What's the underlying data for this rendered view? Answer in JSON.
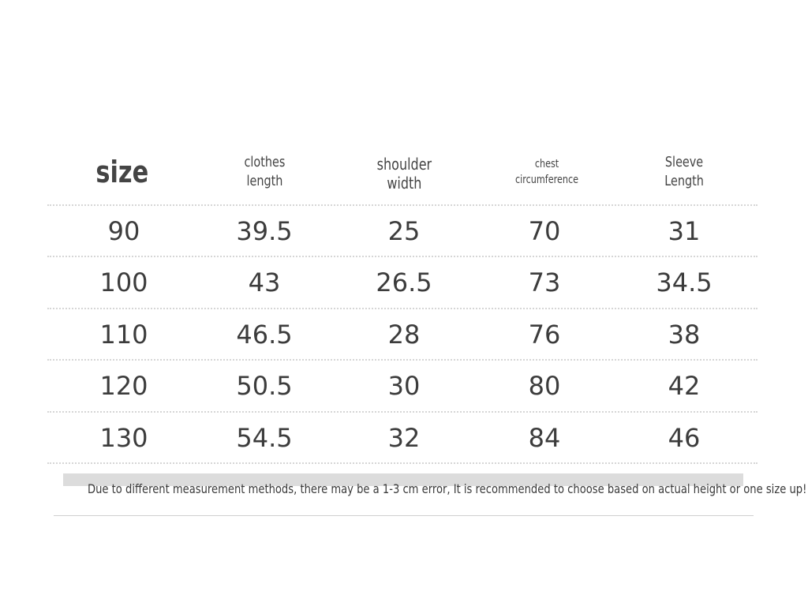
{
  "headers": [
    "size",
    "clothes length",
    "shoulder width",
    "chest circumference",
    "Sleeve Length"
  ],
  "header_lines": [
    [
      "size"
    ],
    [
      "clothes",
      "length"
    ],
    [
      "shoulder",
      "width"
    ],
    [
      "chest",
      "circumference"
    ],
    [
      "Sleeve",
      "Length"
    ]
  ],
  "rows": [
    [
      "90",
      "39.5",
      "25",
      "70",
      "31"
    ],
    [
      "100",
      "43",
      "26.5",
      "73",
      "34.5"
    ],
    [
      "110",
      "46.5",
      "28",
      "76",
      "38"
    ],
    [
      "120",
      "50.5",
      "30",
      "80",
      "42"
    ],
    [
      "130",
      "54.5",
      "32",
      "84",
      "46"
    ]
  ],
  "note": "Due to different measurement methods, there may be a 1-3 cm error, It is recommended to choose based on actual height or one size up!"
}
